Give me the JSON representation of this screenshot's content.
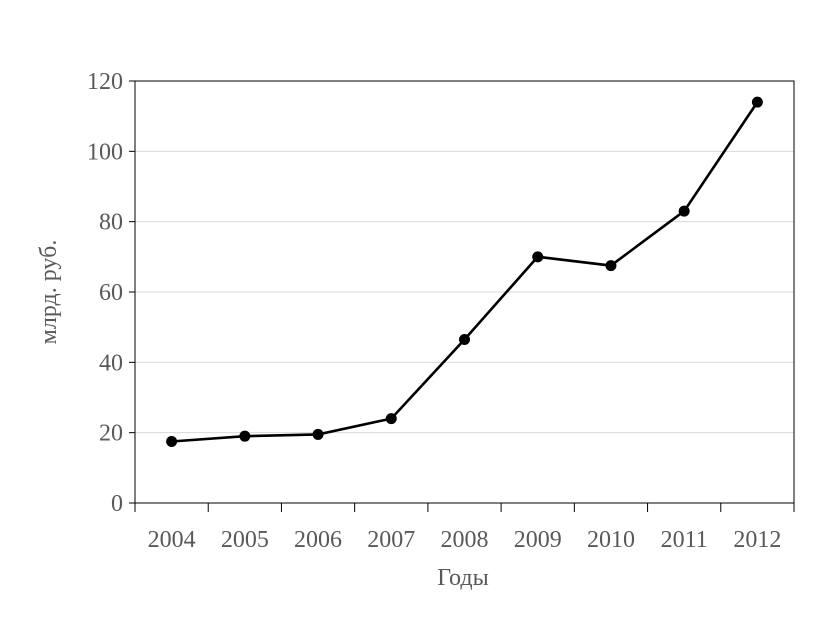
{
  "chart_data": {
    "type": "line",
    "title": "",
    "xlabel": "Годы",
    "ylabel": "млрд. руб.",
    "categories": [
      "2004",
      "2005",
      "2006",
      "2007",
      "2008",
      "2009",
      "2010",
      "2011",
      "2012"
    ],
    "series": [
      {
        "values": [
          17.5,
          19,
          19.5,
          24,
          46.5,
          70,
          67.5,
          83,
          114
        ],
        "color": "#000000"
      }
    ],
    "ylim": [
      0,
      120
    ],
    "yticks": [
      "0",
      "20",
      "40",
      "60",
      "80",
      "100",
      "120"
    ],
    "grid": true,
    "legend": "none"
  }
}
